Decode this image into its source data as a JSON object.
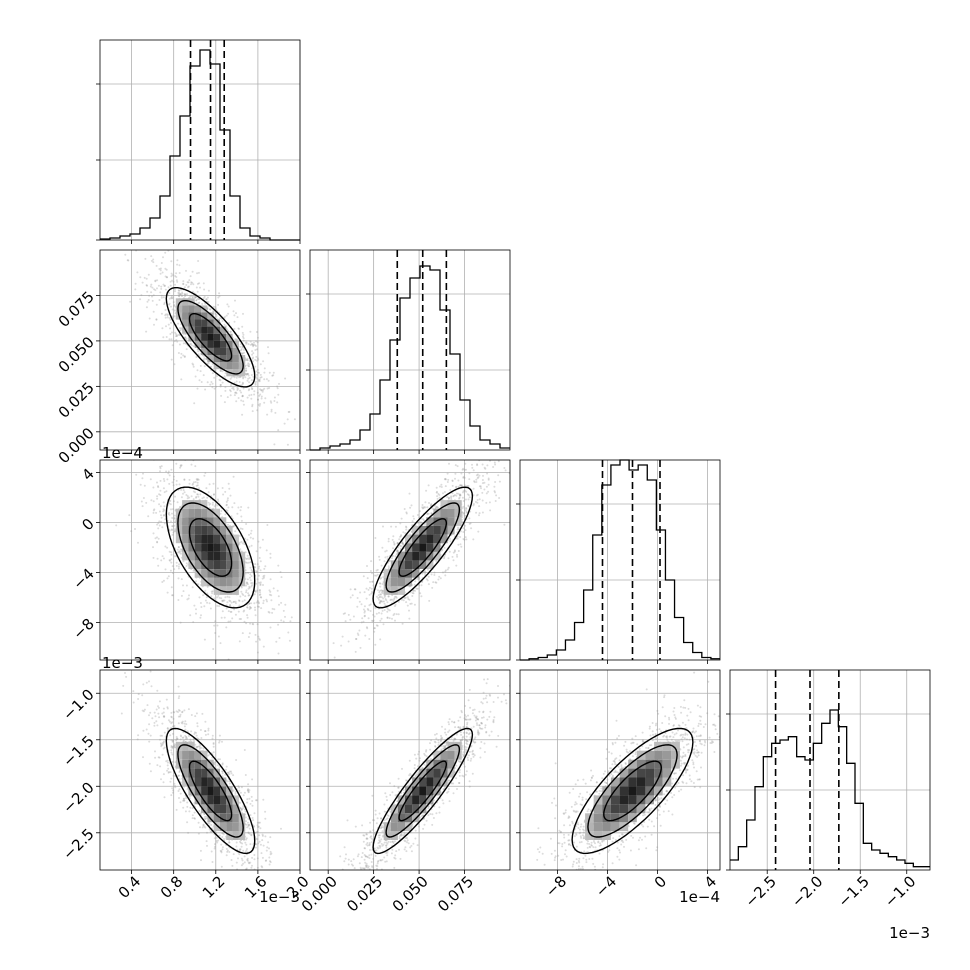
{
  "chart_data": {
    "type": "corner",
    "n_params": 4,
    "grid": true,
    "line_color": "#000000",
    "hist_color": "#000000",
    "scatter_color": "#9a9a9a",
    "density_colormap": [
      "#ffffff",
      "#000000"
    ],
    "params": [
      {
        "range": [
          0.1,
          2.0
        ],
        "multiplier": 0.001,
        "ticks": [
          0.4,
          0.8,
          1.2,
          1.6,
          2.0
        ],
        "tick_labels": [
          "0.4",
          "0.8",
          "1.2",
          "1.6",
          "2.0"
        ],
        "offset_text": "1e−3",
        "mean": 1.15,
        "sd": 0.2,
        "quantiles": [
          0.96,
          1.15,
          1.28
        ],
        "hist_counts": [
          0.5,
          1,
          2,
          3,
          6,
          11,
          22,
          42,
          62,
          87,
          95,
          88,
          55,
          22,
          6,
          2,
          1,
          0,
          0,
          0
        ],
        "hist_ymax": 100
      },
      {
        "range": [
          -0.01,
          0.1
        ],
        "multiplier": 1,
        "ticks": [
          0.0,
          0.025,
          0.05,
          0.075
        ],
        "tick_labels": [
          "0.000",
          "0.025",
          "0.050",
          "0.075"
        ],
        "offset_text": "",
        "mean": 0.052,
        "sd": 0.013,
        "quantiles": [
          0.038,
          0.052,
          0.065
        ],
        "hist_counts": [
          0,
          1,
          2,
          3,
          5,
          10,
          18,
          35,
          55,
          76,
          86,
          92,
          90,
          70,
          48,
          25,
          12,
          5,
          3,
          1
        ],
        "hist_ymax": 100
      },
      {
        "range": [
          -11,
          5
        ],
        "multiplier": 0.0001,
        "ticks": [
          -8,
          -4,
          0,
          4
        ],
        "tick_labels": [
          "−8",
          "−4",
          "0",
          "4"
        ],
        "offset_text": "1e−4",
        "mean": -2.0,
        "sd": 2.3,
        "quantiles": [
          -4.4,
          -2.0,
          0.2
        ],
        "hist_counts": [
          0,
          0.5,
          1,
          2,
          4,
          8,
          15,
          28,
          50,
          70,
          78,
          80,
          76,
          78,
          72,
          52,
          32,
          17,
          7,
          3,
          1,
          0.5
        ],
        "hist_ymax": 80
      },
      {
        "range": [
          -2.9,
          -0.75
        ],
        "multiplier": 0.001,
        "ticks": [
          -2.5,
          -2.0,
          -1.5,
          -1.0
        ],
        "tick_labels": [
          "−2.5",
          "−2.0",
          "−1.5",
          "−1.0"
        ],
        "offset_text": "1e−3",
        "mean": -2.05,
        "sd": 0.32,
        "quantiles": [
          -2.41,
          -2.04,
          -1.73
        ],
        "hist_counts": [
          3,
          7,
          15,
          25,
          34,
          38,
          39,
          40,
          34,
          33,
          38,
          44,
          48,
          43,
          32,
          20,
          8,
          6,
          5,
          4,
          3,
          2,
          1,
          1
        ],
        "hist_ymax": 60
      }
    ],
    "correlations": {
      "1-0": -0.78,
      "2-0": -0.55,
      "2-1": 0.85,
      "3-0": -0.8,
      "3-1": 0.9,
      "3-2": 0.78
    }
  }
}
